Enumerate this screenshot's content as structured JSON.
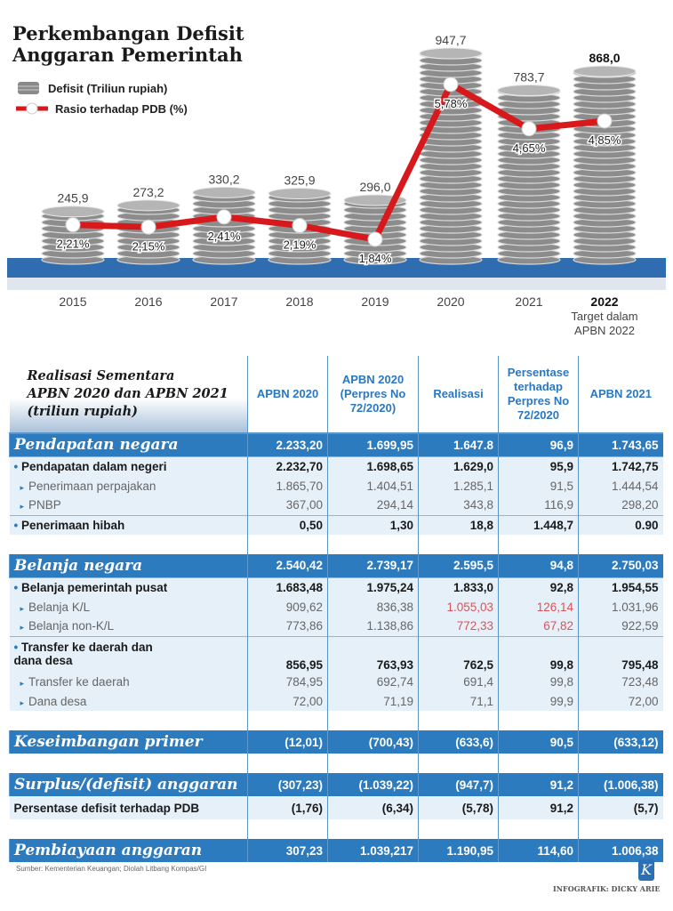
{
  "title": "Perkembangan Defisit Anggaran Pemerintah",
  "legend": {
    "defisit": "Defisit (Triliun rupiah)",
    "rasio": "Rasio terhadap PDB (%)"
  },
  "colors": {
    "coin": "#9a9a9a",
    "line": "#d7191c",
    "ground": "#2f6db0",
    "table_blue": "#2d7bbf",
    "header_text": "#2a78bf",
    "highlight": "#d9535a"
  },
  "chart_data": {
    "type": "bar+line",
    "title": "Perkembangan Defisit Anggaran Pemerintah",
    "categories": [
      "2015",
      "2016",
      "2017",
      "2018",
      "2019",
      "2020",
      "2021",
      "2022"
    ],
    "category_notes": {
      "2022": "Target dalam APBN 2022"
    },
    "series": [
      {
        "name": "Defisit (Triliun rupiah)",
        "type": "bar",
        "values": [
          245.9,
          273.2,
          330.2,
          325.9,
          296.0,
          947.7,
          783.7,
          868.0
        ],
        "labels": [
          "245,9",
          "273,2",
          "330,2",
          "325,9",
          "296,0",
          "947,7",
          "783,7",
          "868,0"
        ]
      },
      {
        "name": "Rasio terhadap PDB (%)",
        "type": "line",
        "values": [
          2.21,
          2.15,
          2.41,
          2.19,
          1.84,
          5.78,
          4.65,
          4.85
        ],
        "labels": [
          "2,21%",
          "2,15%",
          "2,41%",
          "2,19%",
          "1,84%",
          "5,78%",
          "4,65%",
          "4,85%"
        ]
      }
    ],
    "legend": "top-left"
  },
  "table": {
    "title": [
      "Realisasi Sementara",
      "APBN 2020 dan APBN 2021",
      "(triliun rupiah)"
    ],
    "headers": [
      "APBN 2020",
      "APBN 2020 (Perpres No 72/2020)",
      "Realisasi",
      "Persentase terhadap Perpres No 72/2020",
      "APBN 2021"
    ],
    "rows": [
      {
        "type": "blue",
        "label": "Pendapatan negara",
        "values": [
          "2.233,20",
          "1.699,95",
          "1.647.8",
          "96,9",
          "1.743,65"
        ]
      },
      {
        "type": "bold",
        "label": "Pendapatan dalam negeri",
        "values": [
          "2.232,70",
          "1.698,65",
          "1.629,0",
          "95,9",
          "1.742,75"
        ]
      },
      {
        "type": "sub",
        "label": "Penerimaan perpajakan",
        "values": [
          "1.865,70",
          "1.404,51",
          "1.285,1",
          "91,5",
          "1.444,54"
        ]
      },
      {
        "type": "sub",
        "label": "PNBP",
        "values": [
          "367,00",
          "294,14",
          "343,8",
          "116,9",
          "298,20"
        ]
      },
      {
        "type": "bold",
        "label": "Penerimaan hibah",
        "values": [
          "0,50",
          "1,30",
          "18,8",
          "1.448,7",
          "0.90"
        ]
      },
      {
        "type": "empty",
        "label": "",
        "values": [
          "",
          "",
          "",
          "",
          ""
        ]
      },
      {
        "type": "blue",
        "label": "Belanja negara",
        "values": [
          "2.540,42",
          "2.739,17",
          "2.595,5",
          "94,8",
          "2.750,03"
        ]
      },
      {
        "type": "bold",
        "label": "Belanja pemerintah pusat",
        "values": [
          "1.683,48",
          "1.975,24",
          "1.833,0",
          "92,8",
          "1.954,55"
        ]
      },
      {
        "type": "sub",
        "label": "Belanja K/L",
        "values": [
          "909,62",
          "836,38",
          "1.055,03",
          "126,14",
          "1.031,96"
        ],
        "red": [
          2,
          3
        ]
      },
      {
        "type": "sub",
        "label": "Belanja non-K/L",
        "values": [
          "773,86",
          "1.138,86",
          "772,33",
          "67,82",
          "922,59"
        ],
        "red": [
          2,
          3
        ]
      },
      {
        "type": "bold2",
        "label": "Transfer ke daerah dan dana desa",
        "values": [
          "856,95",
          "763,93",
          "762,5",
          "99,8",
          "795,48"
        ]
      },
      {
        "type": "sub",
        "label": "Transfer ke daerah",
        "values": [
          "784,95",
          "692,74",
          "691,4",
          "99,8",
          "723,48"
        ]
      },
      {
        "type": "sub",
        "label": "Dana desa",
        "values": [
          "72,00",
          "71,19",
          "71,1",
          "99,9",
          "72,00"
        ]
      },
      {
        "type": "empty",
        "label": "",
        "values": [
          "",
          "",
          "",
          "",
          ""
        ]
      },
      {
        "type": "blue",
        "label": "Keseimbangan primer",
        "values": [
          "(12,01)",
          "(700,43)",
          "(633,6)",
          "90,5",
          "(633,12)"
        ]
      },
      {
        "type": "empty",
        "label": "",
        "values": [
          "",
          "",
          "",
          "",
          ""
        ]
      },
      {
        "type": "blue",
        "label": "Surplus/(defisit) anggaran",
        "values": [
          "(307,23)",
          "(1.039,22)",
          "(947,7)",
          "91,2",
          "(1.006,38)"
        ]
      },
      {
        "type": "light",
        "label": "Persentase defisit terhadap PDB",
        "values": [
          "(1,76)",
          "(6,34)",
          "(5,78)",
          "91,2",
          "(5,7)"
        ]
      },
      {
        "type": "empty",
        "label": "",
        "values": [
          "",
          "",
          "",
          "",
          ""
        ]
      },
      {
        "type": "blue",
        "label": "Pembiayaan anggaran",
        "values": [
          "307,23",
          "1.039,217",
          "1.190,95",
          "114,60",
          "1.006,38"
        ]
      }
    ]
  },
  "footer": {
    "source": "Sumber: Kementerian Keuangan; Diolah Litbang Kompas/GI",
    "logo": "K",
    "credit": "INFOGRAFIK: DICKY ARIE"
  }
}
